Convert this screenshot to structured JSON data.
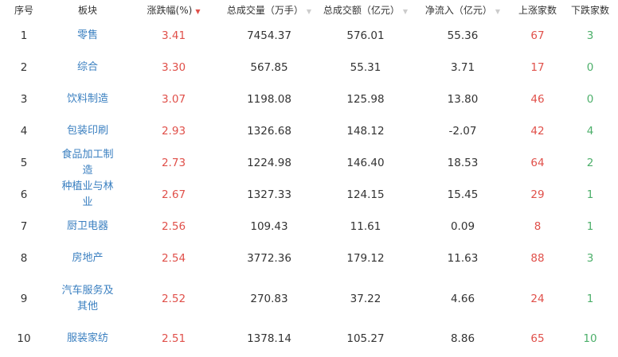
{
  "headers": {
    "idx": "序号",
    "sector": "板块",
    "change": "涨跌幅(%)",
    "volume": "总成交量（万手）",
    "amount": "总成交额（亿元）",
    "inflow": "净流入（亿元）",
    "up": "上涨家数",
    "down": "下跌家数"
  },
  "sort_icons": {
    "change": "▼",
    "volume": "▼",
    "amount": "▼",
    "inflow": "▼"
  },
  "colors": {
    "up": "#e0504a",
    "down": "#4caf6a",
    "link": "#3a7fc0"
  },
  "rows": [
    {
      "idx": "1",
      "sector": "零售",
      "change": "3.41",
      "volume": "7454.37",
      "amount": "576.01",
      "inflow": "55.36",
      "up": "67",
      "down": "3"
    },
    {
      "idx": "2",
      "sector": "综合",
      "change": "3.30",
      "volume": "567.85",
      "amount": "55.31",
      "inflow": "3.71",
      "up": "17",
      "down": "0"
    },
    {
      "idx": "3",
      "sector": "饮料制造",
      "change": "3.07",
      "volume": "1198.08",
      "amount": "125.98",
      "inflow": "13.80",
      "up": "46",
      "down": "0"
    },
    {
      "idx": "4",
      "sector": "包装印刷",
      "change": "2.93",
      "volume": "1326.68",
      "amount": "148.12",
      "inflow": "-2.07",
      "up": "42",
      "down": "4"
    },
    {
      "idx": "5",
      "sector": "食品加工制造",
      "change": "2.73",
      "volume": "1224.98",
      "amount": "146.40",
      "inflow": "18.53",
      "up": "64",
      "down": "2"
    },
    {
      "idx": "6",
      "sector": "种植业与林业",
      "change": "2.67",
      "volume": "1327.33",
      "amount": "124.15",
      "inflow": "15.45",
      "up": "29",
      "down": "1"
    },
    {
      "idx": "7",
      "sector": "厨卫电器",
      "change": "2.56",
      "volume": "109.43",
      "amount": "11.61",
      "inflow": "0.09",
      "up": "8",
      "down": "1"
    },
    {
      "idx": "8",
      "sector": "房地产",
      "change": "2.54",
      "volume": "3772.36",
      "amount": "179.12",
      "inflow": "11.63",
      "up": "88",
      "down": "3"
    },
    {
      "idx": "9",
      "sector": "汽车服务及其他",
      "change": "2.52",
      "volume": "270.83",
      "amount": "37.22",
      "inflow": "4.66",
      "up": "24",
      "down": "1"
    },
    {
      "idx": "10",
      "sector": "服装家纺",
      "change": "2.51",
      "volume": "1378.14",
      "amount": "105.27",
      "inflow": "8.86",
      "up": "65",
      "down": "10"
    }
  ]
}
